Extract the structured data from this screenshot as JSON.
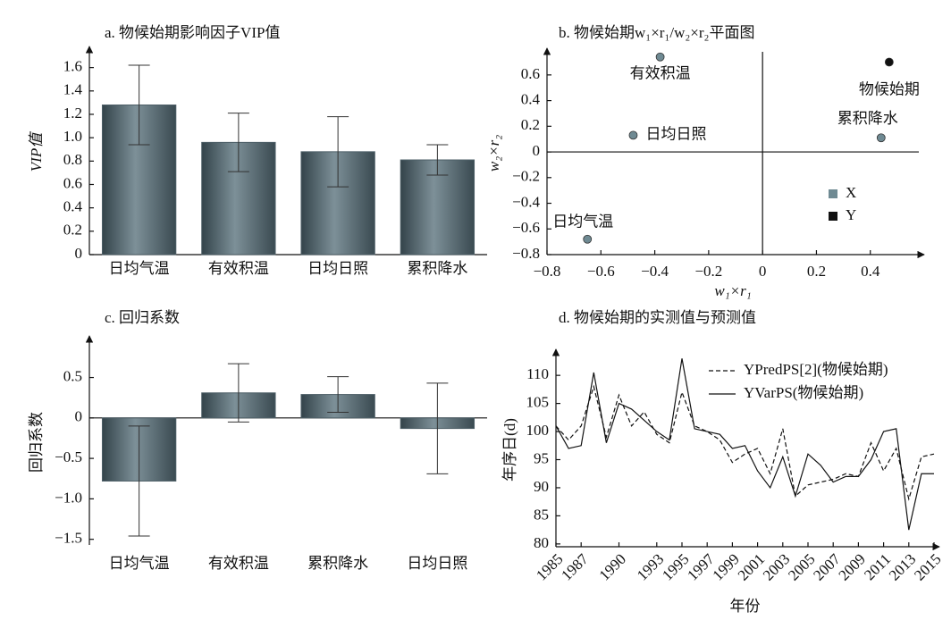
{
  "chart_data": [
    {
      "type": "bar",
      "title": "a. 物候始期影响因子VIP值",
      "ylabel": "VIP值",
      "categories": [
        "日均气温",
        "有效积温",
        "日均日照",
        "累积降水"
      ],
      "values": [
        1.28,
        0.96,
        0.88,
        0.81
      ],
      "errors": [
        0.34,
        0.25,
        0.3,
        0.13
      ],
      "color": "#4d5f67",
      "ylim": [
        0,
        1.75
      ],
      "yticks": [
        0,
        0.2,
        0.4,
        0.6,
        0.8,
        {
          "value": 1,
          "label": "1.0"
        },
        1.2,
        1.4,
        1.6
      ]
    },
    {
      "type": "scatter",
      "title": "b. 物候始期w₁×r₁/w₂×r₂平面图",
      "xlabel": "w₁×r₁",
      "ylabel": "w₂×r₂",
      "series": [
        {
          "name": "X",
          "color": "#6f8a93",
          "x": [
            -0.38,
            -0.48,
            -0.65,
            0.44
          ],
          "values": [
            0.74,
            0.13,
            -0.68,
            0.11
          ],
          "labels": [
            "有效积温",
            "日均日照",
            "日均气温",
            "累积降水"
          ]
        },
        {
          "name": "Y",
          "color": "#111111",
          "x": [
            0.47
          ],
          "values": [
            0.7
          ],
          "labels": [
            "物候始期"
          ]
        }
      ],
      "xlim": [
        -0.8,
        0.58
      ],
      "xticks": [
        {
          "value": -0.8,
          "label": "−0.8"
        },
        {
          "value": -0.6,
          "label": "−0.6"
        },
        {
          "value": -0.4,
          "label": "−0.4"
        },
        {
          "value": -0.2,
          "label": "−0.2"
        },
        0,
        0.2,
        0.4
      ],
      "ylim": [
        -0.8,
        0.78
      ],
      "yticks": [
        {
          "value": -0.8,
          "label": "−0.8"
        },
        {
          "value": -0.6,
          "label": "−0.6"
        },
        {
          "value": -0.4,
          "label": "−0.4"
        },
        {
          "value": -0.2,
          "label": "−0.2"
        },
        0,
        0.2,
        0.4,
        0.6
      ]
    },
    {
      "type": "bar",
      "title": "c. 回归系数",
      "ylabel": "回归系数",
      "categories": [
        "日均气温",
        "有效积温",
        "累积降水",
        "日均日照"
      ],
      "values": [
        -0.78,
        0.31,
        0.29,
        -0.13
      ],
      "errors": [
        0.68,
        0.36,
        0.22,
        0.56
      ],
      "color": "#4d5f67",
      "ylim": [
        -1.57,
        0.97
      ],
      "yticks": [
        {
          "value": -1.5,
          "label": "−1.5"
        },
        {
          "value": -1,
          "label": "−1.0"
        },
        {
          "value": -0.5,
          "label": "−0.5"
        },
        0,
        0.5
      ]
    },
    {
      "type": "line",
      "title": "d. 物候始期的实测值与预测值",
      "xlabel": "年份",
      "ylabel": "年序日(d)",
      "x": [
        1985,
        1986,
        1987,
        1988,
        1989,
        1990,
        1991,
        1992,
        1993,
        1994,
        1995,
        1996,
        1997,
        1998,
        1999,
        2000,
        2001,
        2002,
        2003,
        2004,
        2005,
        2006,
        2007,
        2008,
        2009,
        2010,
        2011,
        2012,
        2013,
        2014,
        2015
      ],
      "series": [
        {
          "name": "YPredPS[2](物候始期)",
          "color": "#111111",
          "line_style": "dashed",
          "values": [
            101,
            98.5,
            101,
            108,
            99,
            106.5,
            101,
            103.5,
            99.5,
            98,
            107,
            101,
            100,
            98.5,
            94.5,
            96,
            97,
            92.5,
            100.5,
            88.5,
            90.5,
            91,
            91.5,
            92.5,
            92,
            98,
            93,
            97,
            88,
            95.5,
            96
          ]
        },
        {
          "name": "YVarPS(物候始期)",
          "color": "#111111",
          "line_style": "solid",
          "values": [
            101,
            97,
            97.5,
            110.5,
            98,
            105,
            104,
            102,
            100,
            98.5,
            113,
            100.5,
            100,
            99.5,
            97,
            97.5,
            93,
            90,
            95.5,
            88.5,
            96,
            94,
            91,
            92,
            92,
            95,
            100,
            100.5,
            82.5,
            92.5,
            92.5
          ]
        }
      ],
      "xlim": [
        1985,
        2015
      ],
      "xticks": [
        1985,
        1987,
        1990,
        1993,
        1995,
        1997,
        1999,
        2001,
        2003,
        2005,
        2007,
        2009,
        2011,
        2013,
        2015
      ],
      "ylim": [
        79.5,
        114
      ],
      "yticks": [
        80,
        85,
        90,
        95,
        100,
        105,
        110
      ]
    }
  ]
}
